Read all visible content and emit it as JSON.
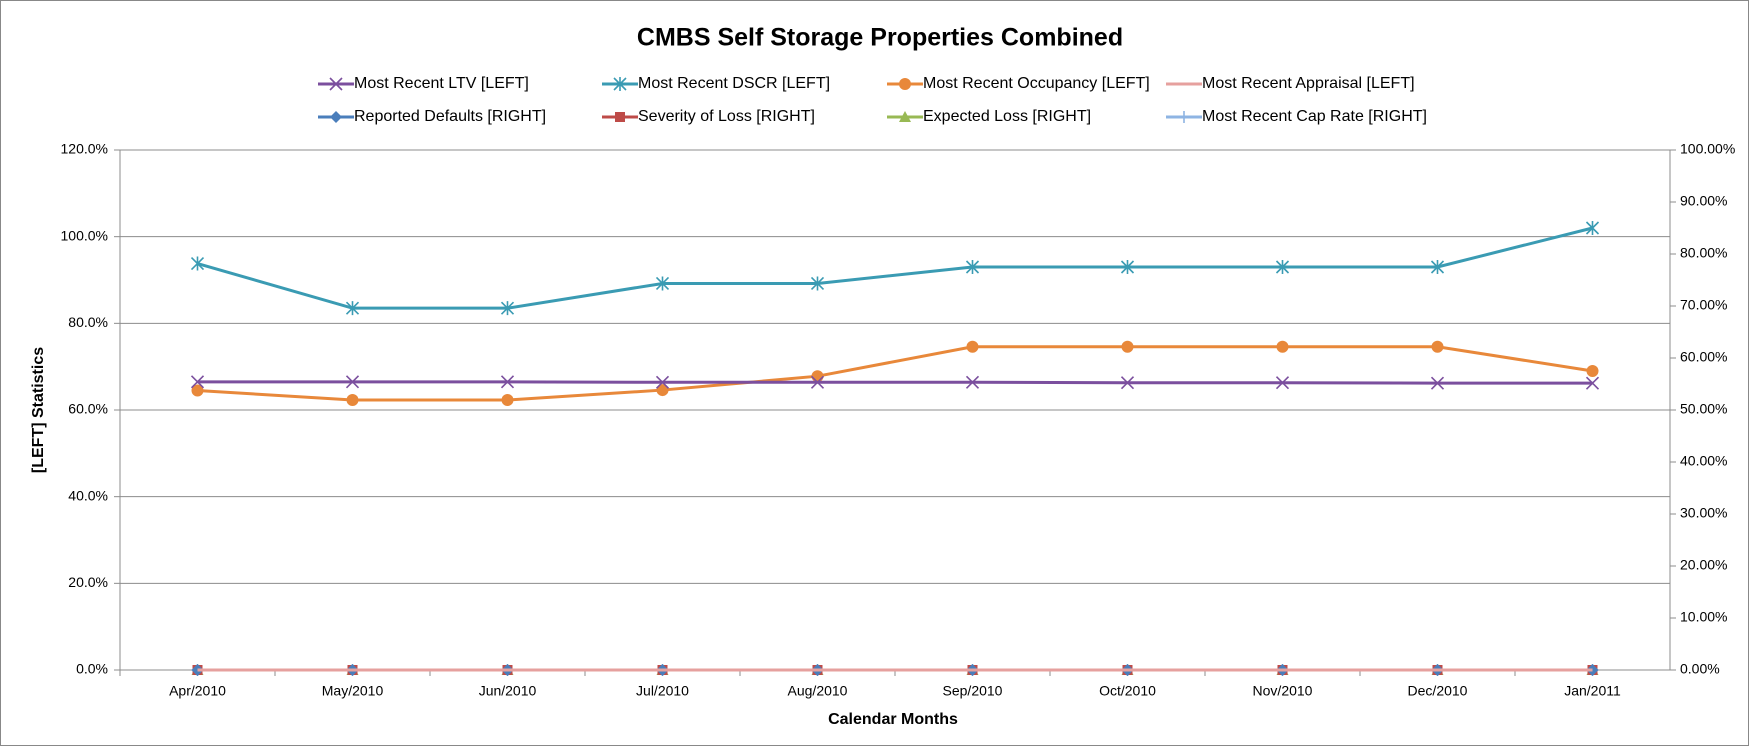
{
  "chart_data": {
    "type": "line",
    "title": "CMBS Self Storage Properties Combined",
    "x_label": "Calendar Months",
    "y_label": "[LEFT] Statistics",
    "categories": [
      "Apr/2010",
      "May/2010",
      "Jun/2010",
      "Jul/2010",
      "Aug/2010",
      "Sep/2010",
      "Oct/2010",
      "Nov/2010",
      "Dec/2010",
      "Jan/2011"
    ],
    "series": [
      {
        "name": "Most Recent LTV [LEFT]",
        "color": "#7b4f9e",
        "marker": "x",
        "values": [
          66.5,
          66.5,
          66.5,
          66.4,
          66.4,
          66.4,
          66.3,
          66.3,
          66.2,
          66.2
        ]
      },
      {
        "name": "Most Recent DSCR [LEFT]",
        "color": "#3a9bb3",
        "marker": "star",
        "values": [
          93.8,
          83.5,
          83.5,
          89.2,
          89.2,
          93.0,
          93.0,
          93.0,
          93.0,
          102.0
        ]
      },
      {
        "name": "Most Recent Occupancy [LEFT]",
        "color": "#e8883a",
        "marker": "circle",
        "values": [
          64.5,
          62.3,
          62.3,
          64.6,
          67.8,
          74.6,
          74.6,
          74.6,
          74.6,
          69.0
        ]
      },
      {
        "name": "Most Recent Appraisal [LEFT]",
        "color": "#e6a09e",
        "marker": "none",
        "values": [
          0,
          0,
          0,
          0,
          0,
          0,
          0,
          0,
          0,
          0
        ]
      },
      {
        "name": "Reported Defaults [RIGHT]",
        "color": "#4a7ebb",
        "marker": "diamond",
        "axis": "y2",
        "values": [
          0,
          0,
          0,
          0,
          0,
          0,
          0,
          0,
          0,
          0
        ]
      },
      {
        "name": "Severity of Loss [RIGHT]",
        "color": "#be4b48",
        "marker": "square",
        "axis": "y2",
        "values": [
          0,
          0,
          0,
          0,
          0,
          0,
          0,
          0,
          0,
          0
        ]
      },
      {
        "name": "Expected Loss [RIGHT]",
        "color": "#98b954",
        "marker": "triangle",
        "axis": "y2",
        "values": [
          0,
          0,
          0,
          0,
          0,
          0,
          0,
          0,
          0,
          0
        ]
      },
      {
        "name": "Most Recent Cap Rate [RIGHT]",
        "color": "#8eb4e3",
        "marker": "plus",
        "axis": "y2",
        "values": [
          0,
          0,
          0,
          0,
          0,
          0,
          0,
          0,
          0,
          0
        ]
      }
    ],
    "ylim": [
      0,
      120
    ],
    "yticks": [
      {
        "value": 0,
        "label": "0.0%"
      },
      {
        "value": 20,
        "label": "20.0%"
      },
      {
        "value": 40,
        "label": "40.0%"
      },
      {
        "value": 60,
        "label": "60.0%"
      },
      {
        "value": 80,
        "label": "80.0%"
      },
      {
        "value": 100,
        "label": "100.0%"
      },
      {
        "value": 120,
        "label": "120.0%"
      }
    ],
    "y2lim": [
      0,
      100
    ],
    "y2ticks": [
      {
        "value": 0,
        "label": "0.00%"
      },
      {
        "value": 10,
        "label": "10.00%"
      },
      {
        "value": 20,
        "label": "20.00%"
      },
      {
        "value": 30,
        "label": "30.00%"
      },
      {
        "value": 40,
        "label": "40.00%"
      },
      {
        "value": 50,
        "label": "50.00%"
      },
      {
        "value": 60,
        "label": "60.00%"
      },
      {
        "value": 70,
        "label": "70.00%"
      },
      {
        "value": 80,
        "label": "80.00%"
      },
      {
        "value": 90,
        "label": "90.00%"
      },
      {
        "value": 100,
        "label": "100.00%"
      }
    ],
    "grid": true,
    "legend": "top"
  }
}
